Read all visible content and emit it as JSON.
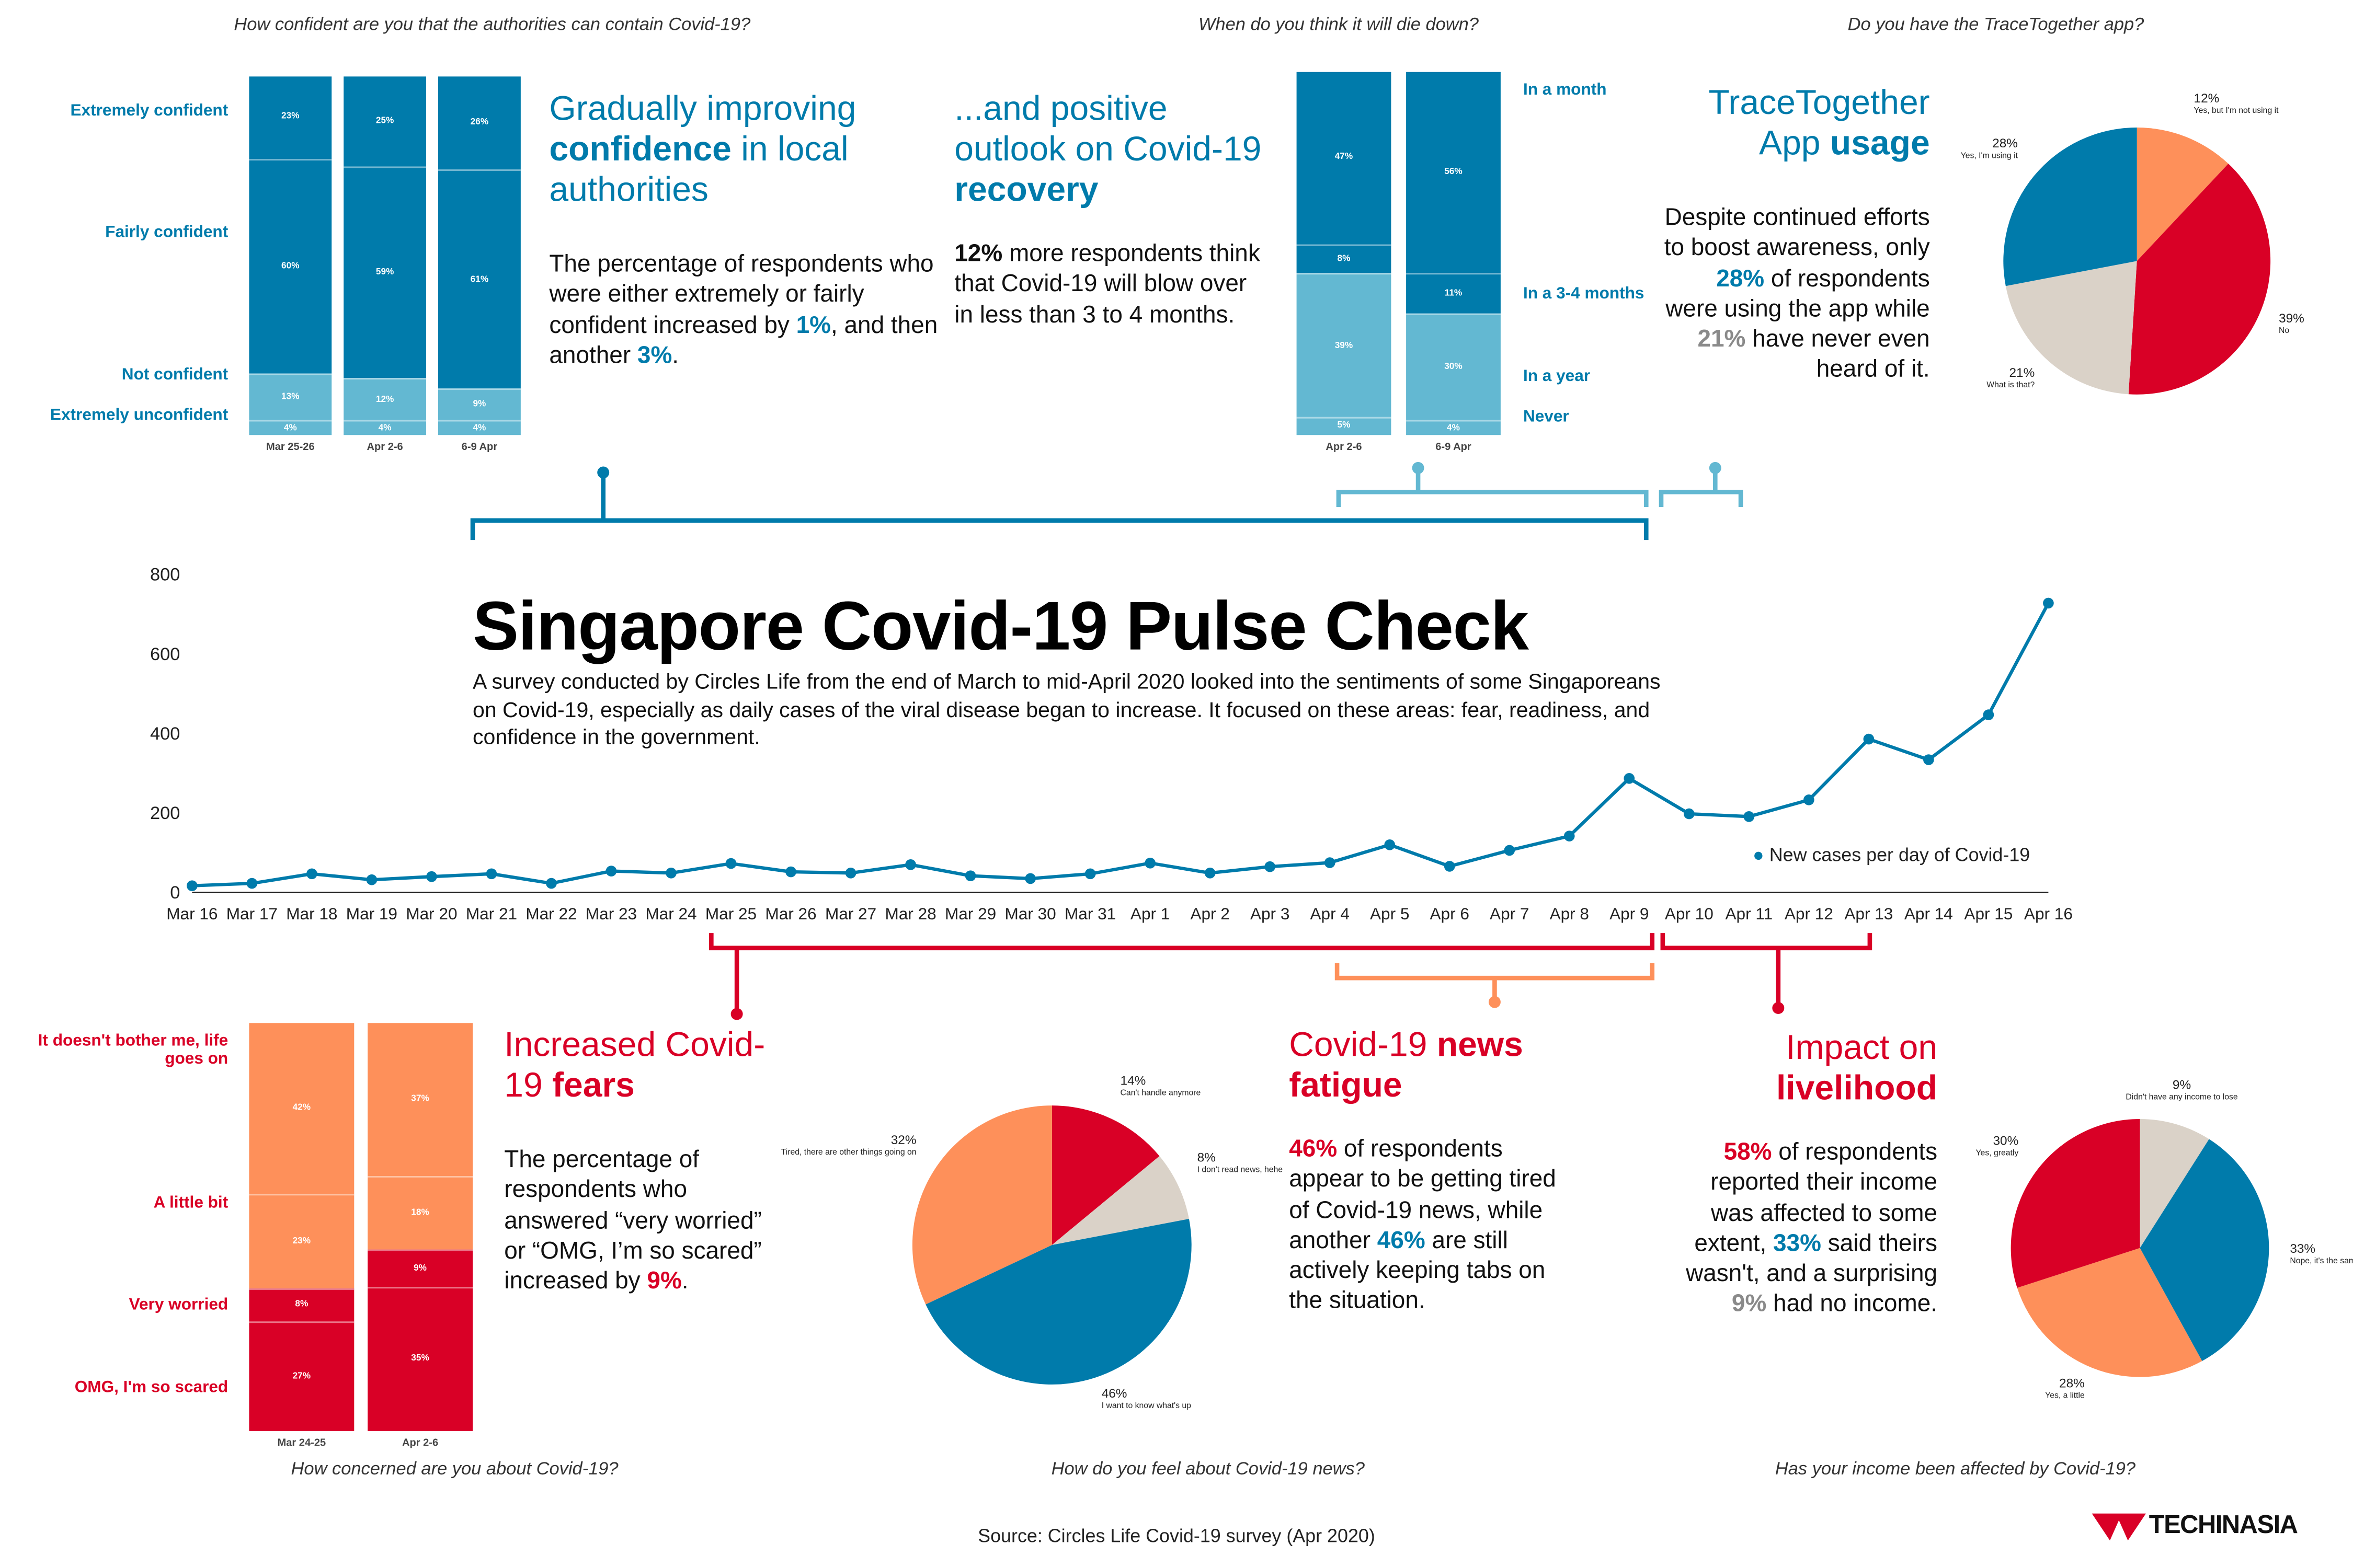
{
  "colors": {
    "blue": "#007bab",
    "light_blue": "#63b8d2",
    "red": "#d90026",
    "orange": "#fe905a",
    "beige": "#dad2c8"
  },
  "title": "Singapore Covid-19 Pulse Check",
  "description": "A survey conducted by Circles Life from the end of March to mid-April 2020 looked into the sentiments of some Singaporeans on Covid-19, especially as daily cases of the viral disease began to increase. It focused on these areas: fear, readiness, and confidence in the government.",
  "source": "Source:  Circles Life Covid-19 survey (Apr 2020)",
  "logo": "TECHINASIA",
  "sections": {
    "confidence": {
      "title_a": "Gradually improving ",
      "title_b": "confidence",
      "title_c": " in local authorities",
      "body_a": "The percentage of respondents who were either extremely or fairly confident increased by ",
      "body_b": "1%",
      "body_c": ", and then another ",
      "body_d": "3%",
      "body_e": "."
    },
    "outlook": {
      "title_a": "...and positive outlook on Covid-19 ",
      "title_b": "recovery",
      "body_a": "12%",
      "body_b": " more respondents think that Covid-19 will blow over in less than 3 to 4 months."
    },
    "app": {
      "title_a": "TraceTogether App ",
      "title_b": "usage",
      "body_a": "Despite continued efforts to boost awareness, only ",
      "body_b": "28%",
      "body_c": " of respondents were using the app while ",
      "body_d": "21%",
      "body_e": " have never even heard of it."
    },
    "fears": {
      "title_a": "Increased Covid-19 ",
      "title_b": "fears",
      "body_a": "The percentage of respondents who answered “very worried” or “OMG, I’m so scared” increased by ",
      "body_b": "9%",
      "body_c": "."
    },
    "news": {
      "title_a": "Covid-19 ",
      "title_b": "news fatigue",
      "body_a": "46%",
      "body_b": " of respondents appear to be getting tired of Covid-19 news, while another ",
      "body_c": "46%",
      "body_d": " are still actively keeping tabs on the situation."
    },
    "income": {
      "title_a": "Impact on ",
      "title_b": "livelihood",
      "body_a": "58%",
      "body_b": " of respondents reported their income was affected to some extent, ",
      "body_c": "33%",
      "body_d": " said theirs wasn't, and a surprising ",
      "body_e": "9%",
      "body_f": " had no income."
    }
  },
  "chart_data": [
    {
      "id": "confidence",
      "type": "bar",
      "stacked": true,
      "title": "How confident are you that the authorities can contain Covid-19?",
      "categories": [
        "Mar 25-26",
        "Apr 2-6",
        "6-9 Apr"
      ],
      "series": [
        {
          "name": "Extremely confident",
          "values": [
            23,
            25,
            26
          ],
          "color": "#007bab"
        },
        {
          "name": "Fairly confident",
          "values": [
            60,
            59,
            61
          ],
          "color": "#007bab"
        },
        {
          "name": "Not confident",
          "values": [
            13,
            12,
            9
          ],
          "color": "#63b8d2"
        },
        {
          "name": "Extremely unconfident",
          "values": [
            4,
            4,
            4
          ],
          "color": "#63b8d2"
        }
      ]
    },
    {
      "id": "die_down",
      "type": "bar",
      "stacked": true,
      "title": "When do you think it will die down?",
      "categories": [
        "Apr 2-6",
        "6-9 Apr"
      ],
      "series": [
        {
          "name": "In a month",
          "values": [
            47,
            56
          ],
          "color": "#007bab"
        },
        {
          "name": "In a 3-4 months",
          "values": [
            8,
            11
          ],
          "color": "#007bab"
        },
        {
          "name": "In a year",
          "values": [
            39,
            30
          ],
          "color": "#63b8d2"
        },
        {
          "name": "Never",
          "values": [
            5,
            4
          ],
          "color": "#63b8d2"
        }
      ]
    },
    {
      "id": "app",
      "type": "pie",
      "title": "Do you have the TraceTogether app?",
      "slices": [
        {
          "label": "Yes, but I'm not using it",
          "value": 12,
          "color": "#fe905a"
        },
        {
          "label": "No",
          "value": 39,
          "color": "#d90026"
        },
        {
          "label": "What is that?",
          "value": 21,
          "color": "#dad2c8"
        },
        {
          "label": "Yes, I'm using it",
          "value": 28,
          "color": "#007bab"
        }
      ]
    },
    {
      "id": "cases",
      "type": "line",
      "ylim": [
        0,
        800
      ],
      "yticks": [
        0,
        200,
        400,
        600,
        800
      ],
      "legend": "New cases per day of Covid-19",
      "legend_position": "right",
      "x": [
        "Mar 16",
        "Mar 17",
        "Mar 18",
        "Mar 19",
        "Mar 20",
        "Mar 21",
        "Mar 22",
        "Mar 23",
        "Mar 24",
        "Mar 25",
        "Mar 26",
        "Mar 27",
        "Mar 28",
        "Mar 29",
        "Mar 30",
        "Mar 31",
        "Apr 1",
        "Apr 2",
        "Apr 3",
        "Apr 4",
        "Apr 5",
        "Apr 6",
        "Apr 7",
        "Apr 8",
        "Apr 9",
        "Apr 10",
        "Apr 11",
        "Apr 12",
        "Apr 13",
        "Apr 14",
        "Apr 15",
        "Apr 16"
      ],
      "values": [
        17,
        23,
        47,
        32,
        40,
        47,
        23,
        54,
        49,
        73,
        52,
        49,
        70,
        42,
        35,
        47,
        74,
        49,
        65,
        75,
        120,
        66,
        106,
        142,
        287,
        198,
        191,
        233,
        386,
        334,
        447,
        728
      ],
      "color": "#007bab"
    },
    {
      "id": "concern",
      "type": "bar",
      "stacked": true,
      "title": "How concerned are you about Covid-19?",
      "categories": [
        "Mar 24-25",
        "Apr 2-6"
      ],
      "series": [
        {
          "name": "It doesn't bother me, life goes on",
          "values": [
            42,
            37
          ],
          "color": "#fe905a"
        },
        {
          "name": "A little bit",
          "values": [
            23,
            18
          ],
          "color": "#fe905a"
        },
        {
          "name": "Very worried",
          "values": [
            8,
            9
          ],
          "color": "#d90026"
        },
        {
          "name": "OMG, I'm so scared",
          "values": [
            27,
            35
          ],
          "color": "#d90026"
        }
      ]
    },
    {
      "id": "news",
      "type": "pie",
      "title": "How do you feel about Covid-19 news?",
      "slices": [
        {
          "label": "Can't handle anymore",
          "value": 14,
          "color": "#d90026"
        },
        {
          "label": "I don't read news, hehe",
          "value": 8,
          "color": "#dad2c8"
        },
        {
          "label": "I want to know what's up",
          "value": 46,
          "color": "#007bab"
        },
        {
          "label": "Tired, there are other things going on",
          "value": 32,
          "color": "#fe905a"
        }
      ]
    },
    {
      "id": "income",
      "type": "pie",
      "title": "Has your income been affected by Covid-19?",
      "slices": [
        {
          "label": "Didn't have any income to lose",
          "value": 9,
          "color": "#dad2c8"
        },
        {
          "label": "Nope, it's the same",
          "value": 33,
          "color": "#007bab"
        },
        {
          "label": "Yes, a little",
          "value": 28,
          "color": "#fe905a"
        },
        {
          "label": "Yes, greatly",
          "value": 30,
          "color": "#d90026"
        }
      ]
    }
  ]
}
